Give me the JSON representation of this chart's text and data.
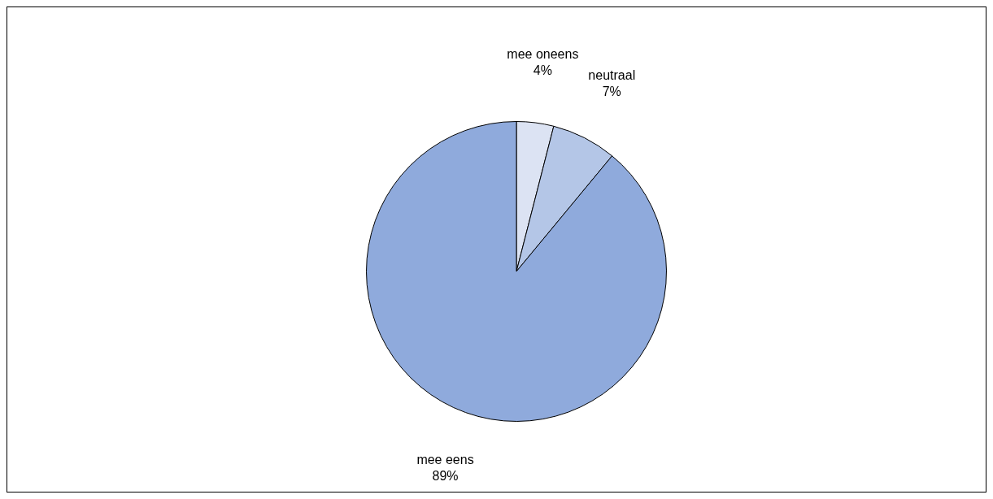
{
  "chart_data": {
    "type": "pie",
    "categories": [
      "mee oneens",
      "neutraal",
      "mee eens"
    ],
    "values": [
      4,
      7,
      89
    ],
    "colors": [
      "#dce3f3",
      "#b4c6e7",
      "#8faadc"
    ],
    "value_labels": [
      "4%",
      "7%",
      "89%"
    ],
    "legend": false
  }
}
